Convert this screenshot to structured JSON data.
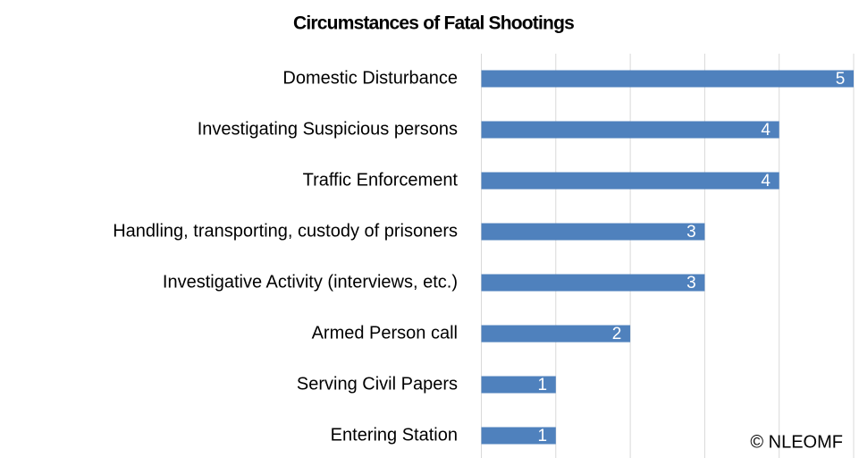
{
  "chart_data": {
    "type": "barh",
    "title": "Circumstances of Fatal Shootings",
    "categories": [
      "Domestic Disturbance",
      "Investigating Suspicious persons",
      "Traffic Enforcement",
      "Handling, transporting, custody of prisoners",
      "Investigative Activity (interviews, etc.)",
      "Armed Person call",
      "Serving Civil Papers",
      "Entering Station"
    ],
    "values": [
      5,
      4,
      4,
      3,
      3,
      2,
      1,
      1
    ],
    "color": "#4f81bd",
    "xlim": [
      0,
      5
    ],
    "xticks": [
      0,
      1,
      2,
      3,
      4,
      5
    ],
    "grid": true,
    "annotation": "© NLEOMF"
  }
}
